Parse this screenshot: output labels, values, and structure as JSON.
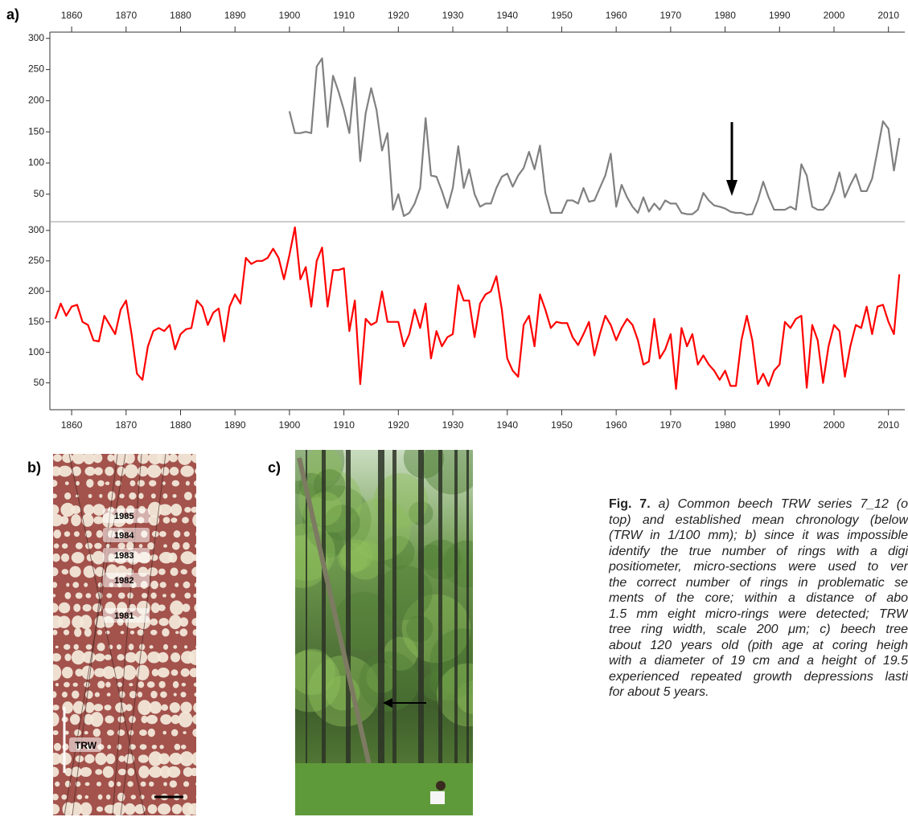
{
  "panel_labels": [
    "a)",
    "b)",
    "c)"
  ],
  "chart_data": [
    {
      "type": "line",
      "xaxis": "top",
      "color": "#808080",
      "xlim": [
        1856,
        2013
      ],
      "xticks": [
        1860,
        1870,
        1880,
        1890,
        1900,
        1910,
        1920,
        1930,
        1940,
        1950,
        1960,
        1970,
        1980,
        1990,
        2000,
        2010
      ],
      "ylim": [
        11,
        310
      ],
      "yticks": [
        50,
        100,
        150,
        200,
        250,
        300
      ],
      "x": [
        1900,
        1901,
        1902,
        1903,
        1904,
        1905,
        1906,
        1907,
        1908,
        1909,
        1910,
        1911,
        1912,
        1913,
        1914,
        1915,
        1916,
        1917,
        1918,
        1919,
        1920,
        1921,
        1922,
        1923,
        1924,
        1925,
        1926,
        1927,
        1928,
        1929,
        1930,
        1931,
        1932,
        1933,
        1934,
        1935,
        1936,
        1937,
        1938,
        1939,
        1940,
        1941,
        1942,
        1943,
        1944,
        1945,
        1946,
        1947,
        1948,
        1949,
        1950,
        1951,
        1952,
        1953,
        1954,
        1955,
        1956,
        1957,
        1958,
        1959,
        1960,
        1961,
        1962,
        1963,
        1964,
        1965,
        1966,
        1967,
        1968,
        1969,
        1970,
        1971,
        1972,
        1973,
        1974,
        1975,
        1976,
        1977,
        1978,
        1979,
        1980,
        1981,
        1982,
        1983,
        1984,
        1985,
        1986,
        1987,
        1988,
        1989,
        1990,
        1991,
        1992,
        1993,
        1994,
        1995,
        1996,
        1997,
        1998,
        1999,
        2000,
        2001,
        2002,
        2003,
        2004,
        2005,
        2006,
        2007,
        2008,
        2009,
        2010,
        2011,
        2012
      ],
      "values": [
        183,
        148,
        148,
        150,
        148,
        255,
        268,
        158,
        240,
        215,
        185,
        148,
        237,
        103,
        180,
        220,
        185,
        120,
        148,
        25,
        50,
        15,
        20,
        35,
        60,
        172,
        80,
        78,
        55,
        28,
        60,
        127,
        60,
        90,
        50,
        30,
        35,
        35,
        60,
        78,
        83,
        62,
        80,
        92,
        118,
        90,
        128,
        52,
        20,
        20,
        20,
        40,
        40,
        35,
        60,
        38,
        40,
        60,
        80,
        115,
        30,
        65,
        45,
        30,
        20,
        45,
        22,
        35,
        25,
        40,
        35,
        35,
        20,
        18,
        18,
        25,
        52,
        40,
        32,
        30,
        27,
        22,
        20,
        20,
        17,
        18,
        40,
        70,
        45,
        25,
        25,
        25,
        30,
        25,
        98,
        80,
        30,
        25,
        25,
        35,
        55,
        85,
        45,
        65,
        82,
        55,
        55,
        75,
        120,
        167,
        155,
        88,
        140
      ]
    },
    {
      "type": "line",
      "xaxis": "bottom",
      "color": "#ff0000",
      "xlim": [
        1856,
        2013
      ],
      "xticks": [
        1860,
        1870,
        1880,
        1890,
        1900,
        1910,
        1920,
        1930,
        1940,
        1950,
        1960,
        1970,
        1980,
        1990,
        2000,
        2010
      ],
      "ylim": [
        6,
        309
      ],
      "yticks": [
        50,
        100,
        150,
        200,
        250,
        300
      ],
      "x": [
        1857,
        1858,
        1859,
        1860,
        1861,
        1862,
        1863,
        1864,
        1865,
        1866,
        1867,
        1868,
        1869,
        1870,
        1871,
        1872,
        1873,
        1874,
        1875,
        1876,
        1877,
        1878,
        1879,
        1880,
        1881,
        1882,
        1883,
        1884,
        1885,
        1886,
        1887,
        1888,
        1889,
        1890,
        1891,
        1892,
        1893,
        1894,
        1895,
        1896,
        1897,
        1898,
        1899,
        1900,
        1901,
        1902,
        1903,
        1904,
        1905,
        1906,
        1907,
        1908,
        1909,
        1910,
        1911,
        1912,
        1913,
        1914,
        1915,
        1916,
        1917,
        1918,
        1919,
        1920,
        1921,
        1922,
        1923,
        1924,
        1925,
        1926,
        1927,
        1928,
        1929,
        1930,
        1931,
        1932,
        1933,
        1934,
        1935,
        1936,
        1937,
        1938,
        1939,
        1940,
        1941,
        1942,
        1943,
        1944,
        1945,
        1946,
        1947,
        1948,
        1949,
        1950,
        1951,
        1952,
        1953,
        1954,
        1955,
        1956,
        1957,
        1958,
        1959,
        1960,
        1961,
        1962,
        1963,
        1964,
        1965,
        1966,
        1967,
        1968,
        1969,
        1970,
        1971,
        1972,
        1973,
        1974,
        1975,
        1976,
        1977,
        1978,
        1979,
        1980,
        1981,
        1982,
        1983,
        1984,
        1985,
        1986,
        1987,
        1988,
        1989,
        1990,
        1991,
        1992,
        1993,
        1994,
        1995,
        1996,
        1997,
        1998,
        1999,
        2000,
        2001,
        2002,
        2003,
        2004,
        2005,
        2006,
        2007,
        2008,
        2009,
        2010,
        2011,
        2012
      ],
      "values": [
        155,
        180,
        160,
        175,
        178,
        150,
        145,
        120,
        118,
        160,
        145,
        130,
        170,
        185,
        130,
        65,
        55,
        110,
        135,
        140,
        135,
        145,
        105,
        130,
        138,
        140,
        185,
        175,
        145,
        165,
        172,
        118,
        175,
        195,
        180,
        255,
        245,
        250,
        250,
        255,
        270,
        255,
        220,
        260,
        305,
        220,
        240,
        175,
        250,
        272,
        175,
        235,
        235,
        238,
        135,
        185,
        48,
        155,
        145,
        150,
        200,
        150,
        150,
        150,
        110,
        130,
        170,
        140,
        180,
        90,
        135,
        110,
        125,
        130,
        210,
        185,
        185,
        125,
        180,
        195,
        200,
        225,
        170,
        90,
        70,
        60,
        145,
        160,
        110,
        195,
        170,
        140,
        150,
        148,
        148,
        125,
        112,
        130,
        150,
        95,
        130,
        160,
        145,
        120,
        140,
        155,
        145,
        120,
        80,
        85,
        155,
        90,
        105,
        130,
        40,
        140,
        110,
        130,
        80,
        95,
        80,
        70,
        55,
        70,
        45,
        45,
        120,
        160,
        120,
        48,
        65,
        45,
        70,
        80,
        150,
        140,
        155,
        160,
        42,
        145,
        120,
        50,
        110,
        145,
        135,
        60,
        110,
        145,
        140,
        175,
        130,
        175,
        178,
        150,
        130,
        228
      ]
    }
  ],
  "micrograph": {
    "year_labels": [
      "1985",
      "1984",
      "1983",
      "1982",
      "1981"
    ],
    "trw_label": "TRW"
  },
  "caption": {
    "label": "Fig. 7.",
    "lines": [
      " a) Common beech TRW series 7_12 (o",
      "top) and established mean chronology (below",
      "(TRW in 1/100 mm); b) since it was impossible",
      "identify the true number of rings with a digi",
      "positiometer, micro-sections were used to ver",
      "the correct number of rings in problematic se",
      "ments of the core; within a distance of abo",
      "1.5 mm eight micro-rings were detected; TRW",
      "tree ring width, scale 200 μm; c) beech tree",
      "about 120 years old (pith age at coring heigh",
      "with a diameter of 19 cm and a height of 19.5",
      "experienced repeated growth depressions lasti",
      "for about 5 years."
    ]
  }
}
